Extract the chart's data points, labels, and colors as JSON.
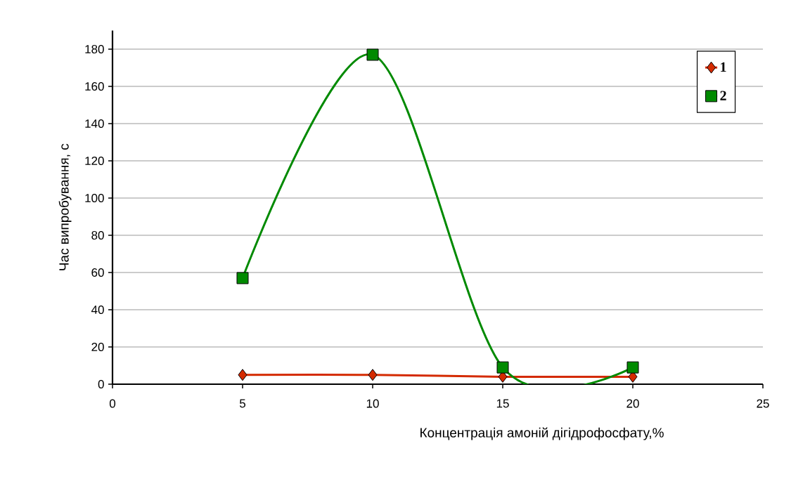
{
  "chart_data": {
    "type": "line",
    "xlabel": "Концентрація амоній дігідрофосфату,%",
    "ylabel": "Час випробування, с",
    "x": [
      5,
      10,
      15,
      20
    ],
    "series": [
      {
        "name": "1",
        "color": "#d42a00",
        "values": [
          5,
          5,
          4,
          4
        ],
        "marker": "diamond"
      },
      {
        "name": "2",
        "color": "#008a00",
        "values": [
          57,
          177,
          9,
          9
        ],
        "marker": "square"
      }
    ],
    "xlim": [
      0,
      25
    ],
    "xticks": [
      0,
      5,
      10,
      15,
      20,
      25
    ],
    "ylim": [
      0,
      190
    ],
    "yticks": [
      0,
      20,
      40,
      60,
      80,
      100,
      120,
      140,
      160,
      180
    ],
    "grid": "y",
    "legend": "top right"
  }
}
